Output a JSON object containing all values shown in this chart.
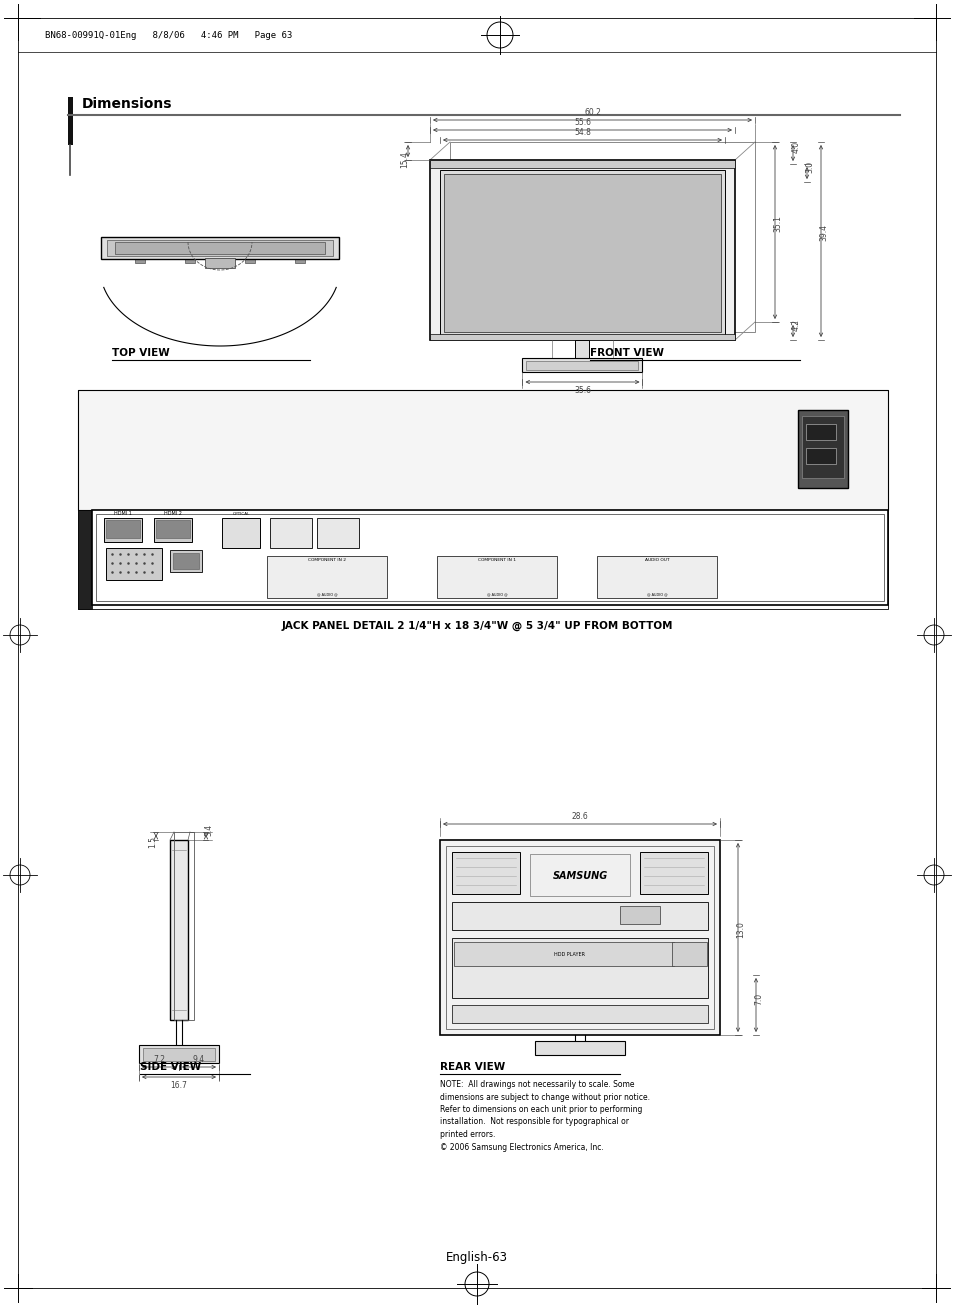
{
  "page_bg": "#ffffff",
  "header_text": "BN68-00991Q-01Eng   8/8/06   4:46 PM   Page 63",
  "section_title": "Dimensions",
  "top_view_label": "TOP VIEW",
  "front_view_label": "FRONT VIEW",
  "jack_panel_label": "JACK PANEL DETAIL 2 1/4\"H x 18 3/4\"W @ 5 3/4\" UP FROM BOTTOM",
  "side_view_label": "SIDE VIEW",
  "rear_view_label": "REAR VIEW",
  "footer_text": "English-63",
  "note_text": "NOTE:  All drawings not necessarily to scale. Some\ndimensions are subject to change without prior notice.\nRefer to dimensions on each unit prior to performing\ninstallation.  Not responsible for typographical or\nprinted errors.\n© 2006 Samsung Electronics America, Inc.",
  "front_dims": {
    "width_outer": "60.2",
    "width_mid": "55.6",
    "width_inner": "54.8",
    "height_outer": "35.1",
    "height_small1": "4.0",
    "height_small2": "3.0",
    "height_mid2": "39.4",
    "depth": "15.4",
    "base_width": "35.6"
  },
  "side_dims": {
    "top_width": "3.4",
    "side1": "1.5",
    "bottom1": "7.2",
    "bottom2": "9.4",
    "bottom_total": "16.7"
  },
  "rear_dims": {
    "width": "28.6",
    "height1": "13.0",
    "height2": "7.0"
  },
  "note_font_size": 5.5
}
